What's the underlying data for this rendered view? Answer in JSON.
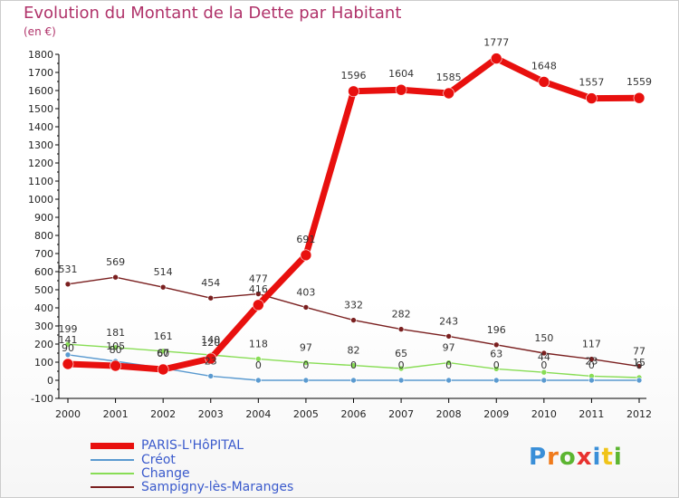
{
  "title": "Evolution du Montant de la Dette par Habitant",
  "subtitle": "(en €)",
  "logo": {
    "text": "Proxiti",
    "colors": [
      "#3a8fd8",
      "#f07b1c",
      "#5cb531",
      "#e8312f",
      "#3a8fd8",
      "#f0c419",
      "#5cb531"
    ]
  },
  "chart_data": {
    "type": "line",
    "x": [
      "2000",
      "2001",
      "2002",
      "2003",
      "2004",
      "2005",
      "2006",
      "2007",
      "2008",
      "2009",
      "2010",
      "2011",
      "2012"
    ],
    "ylim": [
      -100,
      1800
    ],
    "yticks": [
      "-100",
      "0",
      "100",
      "200",
      "300",
      "400",
      "500",
      "600",
      "700",
      "800",
      "900",
      "1000",
      "1100",
      "1200",
      "1300",
      "1400",
      "1500",
      "1600",
      "1700",
      "1800"
    ],
    "grid": false,
    "legend_position": "bottom-left",
    "series": [
      {
        "name": "PARIS-L'HôPITAL",
        "color": "#e8100e",
        "width": 7,
        "values": [
          90,
          80,
          60,
          120,
          416,
          691,
          1596,
          1604,
          1585,
          1777,
          1648,
          1557,
          1559
        ]
      },
      {
        "name": "Créot",
        "color": "#5a9ad0",
        "width": 1.4,
        "values": [
          141,
          105,
          67,
          23,
          0,
          0,
          0,
          0,
          0,
          0,
          0,
          0,
          0
        ]
      },
      {
        "name": "Change",
        "color": "#88dd55",
        "width": 1.4,
        "values": [
          199,
          181,
          161,
          140,
          118,
          97,
          82,
          65,
          97,
          63,
          44,
          23,
          15
        ]
      },
      {
        "name": "Sampigny-lès-Maranges",
        "color": "#7a1f1f",
        "width": 1.4,
        "values": [
          531,
          569,
          514,
          454,
          477,
          403,
          332,
          282,
          243,
          196,
          150,
          117,
          77
        ]
      }
    ]
  }
}
